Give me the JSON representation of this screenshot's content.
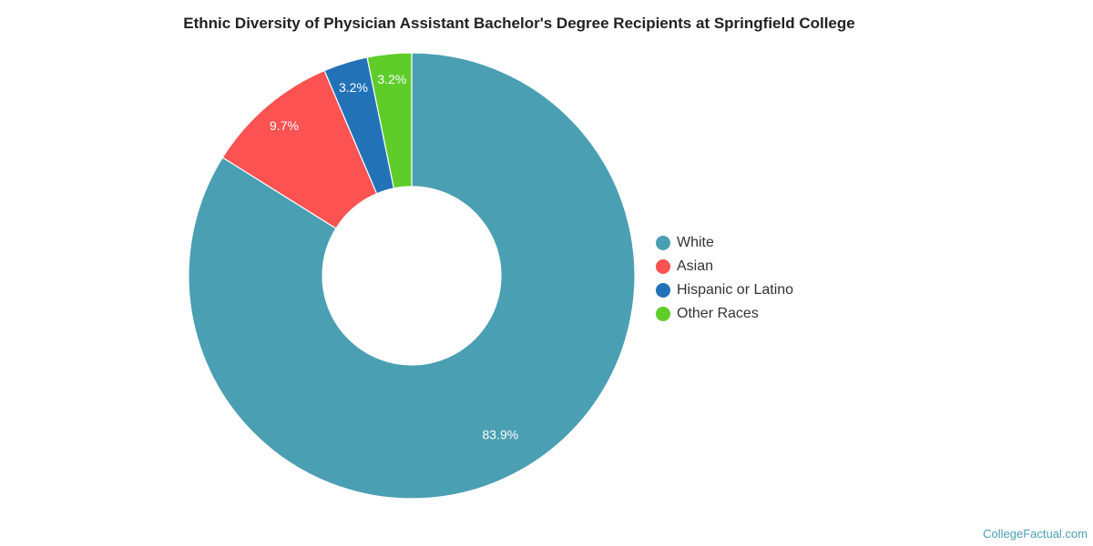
{
  "chart_data": {
    "type": "pie",
    "variant": "donut",
    "title": "Ethnic Diversity of Physician Assistant Bachelor's Degree Recipients at Springfield College",
    "legend_position": "right",
    "slices": [
      {
        "label": "White",
        "value": 83.9,
        "display": "83.9%",
        "color": "#4a9fb2"
      },
      {
        "label": "Asian",
        "value": 9.7,
        "display": "9.7%",
        "color": "#fc5252"
      },
      {
        "label": "Hispanic or Latino",
        "value": 3.2,
        "display": "3.2%",
        "color": "#2272b8"
      },
      {
        "label": "Other Races",
        "value": 3.2,
        "display": "3.2%",
        "color": "#5ecd2a"
      }
    ]
  },
  "watermark": "CollegeFactual.com"
}
